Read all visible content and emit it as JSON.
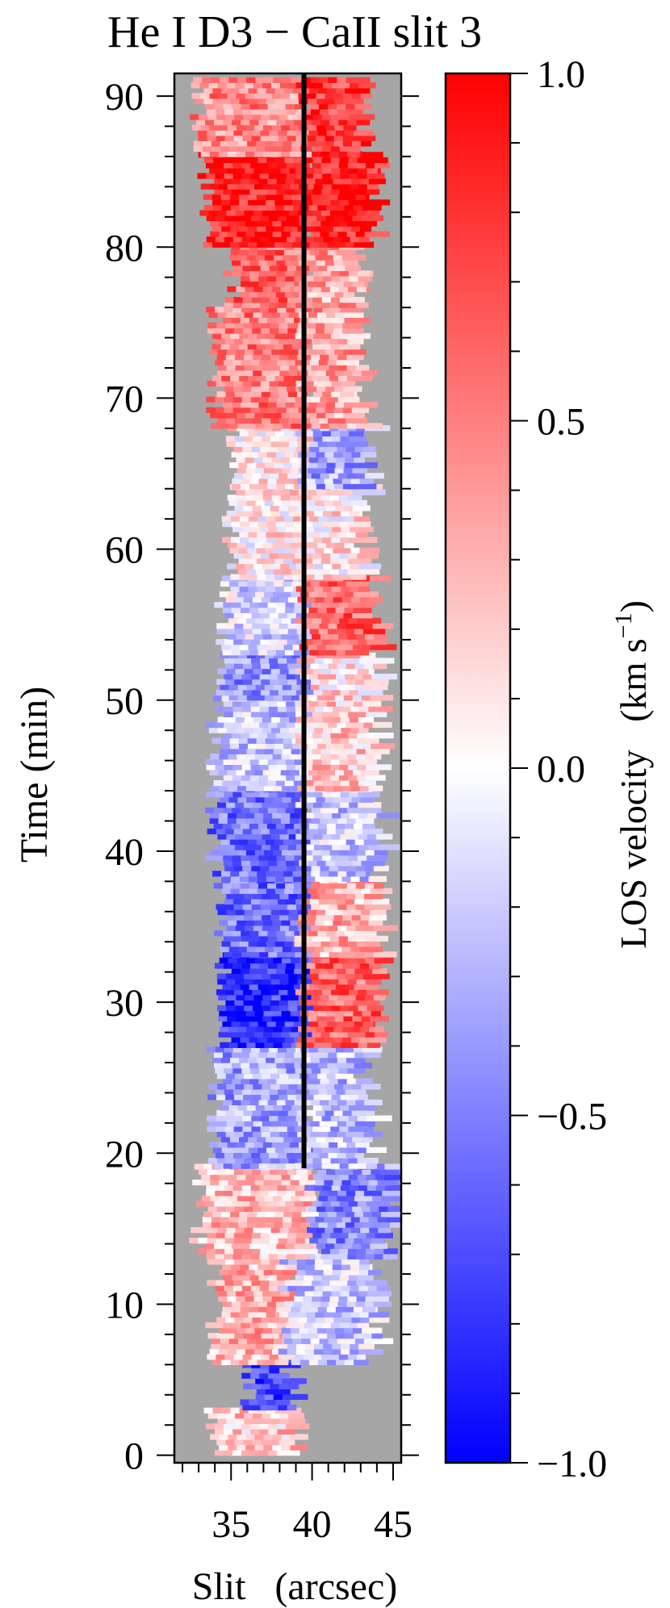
{
  "chart_data": {
    "type": "heatmap",
    "title": "He I D3 − CaII slit 3",
    "xlabel": "Slit   (arcsec)",
    "ylabel": "Time   (min)",
    "colorbar_label": "LOS velocity   (km s",
    "colorbar_label_sup": "−1",
    "colorbar_label_close": ")",
    "xlim": [
      31.5,
      45.5
    ],
    "ylim": [
      -0.5,
      91.5
    ],
    "x_ticks": [
      {
        "value": 35,
        "label": "35"
      },
      {
        "value": 40,
        "label": "40"
      },
      {
        "value": 45,
        "label": "45"
      }
    ],
    "y_ticks": [
      {
        "value": 0,
        "label": "0"
      },
      {
        "value": 10,
        "label": "10"
      },
      {
        "value": 20,
        "label": "20"
      },
      {
        "value": 30,
        "label": "30"
      },
      {
        "value": 40,
        "label": "40"
      },
      {
        "value": 50,
        "label": "50"
      },
      {
        "value": 60,
        "label": "60"
      },
      {
        "value": 70,
        "label": "70"
      },
      {
        "value": 80,
        "label": "80"
      },
      {
        "value": 90,
        "label": "90"
      }
    ],
    "colorbar": {
      "min": -1.0,
      "max": 1.0,
      "colors": {
        "low": "#0000ff",
        "mid": "#ffffff",
        "high": "#ff0000"
      },
      "ticks": [
        {
          "value": 1.0,
          "label": "1.0"
        },
        {
          "value": 0.5,
          "label": "0.5"
        },
        {
          "value": 0.0,
          "label": "0.0"
        },
        {
          "value": -0.5,
          "label": "−0.5"
        },
        {
          "value": -1.0,
          "label": "−1.0"
        }
      ]
    },
    "background_color": "#a6a6a6",
    "reference_line": {
      "x": 39.5,
      "y_start": 19,
      "y_end": 91.5,
      "color": "#000000"
    },
    "regions": [
      {
        "t": [
          0,
          3
        ],
        "x": [
          33.8,
          38.5
        ],
        "v": 0.2
      },
      {
        "t": [
          3,
          8
        ],
        "x": [
          36.0,
          38.2
        ],
        "v": -0.7
      },
      {
        "t": [
          6,
          13
        ],
        "x": [
          34.0,
          38.5
        ],
        "v": 0.3
      },
      {
        "t": [
          6,
          13
        ],
        "x": [
          38.5,
          43.5
        ],
        "v": -0.2
      },
      {
        "t": [
          13,
          19
        ],
        "x": [
          33.0,
          40.0
        ],
        "v": 0.25
      },
      {
        "t": [
          13,
          19
        ],
        "x": [
          40.0,
          44.5
        ],
        "v": -0.45
      },
      {
        "t": [
          19,
          27
        ],
        "x": [
          34.0,
          39.5
        ],
        "v": -0.35
      },
      {
        "t": [
          19,
          27
        ],
        "x": [
          39.5,
          43.0
        ],
        "v": -0.25
      },
      {
        "t": [
          27,
          33
        ],
        "x": [
          34.5,
          39.5
        ],
        "v": -0.8
      },
      {
        "t": [
          27,
          33
        ],
        "x": [
          39.5,
          43.5
        ],
        "v": 0.6
      },
      {
        "t": [
          33,
          38
        ],
        "x": [
          34.5,
          39.5
        ],
        "v": -0.55
      },
      {
        "t": [
          33,
          38
        ],
        "x": [
          39.5,
          43.5
        ],
        "v": 0.3
      },
      {
        "t": [
          38,
          44
        ],
        "x": [
          34.0,
          39.5
        ],
        "v": -0.55
      },
      {
        "t": [
          38,
          44
        ],
        "x": [
          39.5,
          43.5
        ],
        "v": -0.2
      },
      {
        "t": [
          44,
          50
        ],
        "x": [
          34.0,
          39.5
        ],
        "v": -0.2
      },
      {
        "t": [
          44,
          50
        ],
        "x": [
          39.5,
          43.5
        ],
        "v": 0.2
      },
      {
        "t": [
          50,
          53
        ],
        "x": [
          34.5,
          39.5
        ],
        "v": -0.45
      },
      {
        "t": [
          50,
          53
        ],
        "x": [
          39.5,
          43.5
        ],
        "v": 0.15
      },
      {
        "t": [
          53,
          58
        ],
        "x": [
          34.5,
          39.5
        ],
        "v": -0.15
      },
      {
        "t": [
          53,
          58
        ],
        "x": [
          39.5,
          43.5
        ],
        "v": 0.6
      },
      {
        "t": [
          58,
          64
        ],
        "x": [
          35.0,
          39.5
        ],
        "v": 0.1
      },
      {
        "t": [
          58,
          64
        ],
        "x": [
          39.5,
          43.0
        ],
        "v": 0.1
      },
      {
        "t": [
          64,
          68
        ],
        "x": [
          35.0,
          39.5
        ],
        "v": 0.1
      },
      {
        "t": [
          64,
          68
        ],
        "x": [
          39.5,
          43.0
        ],
        "v": -0.35
      },
      {
        "t": [
          68,
          76
        ],
        "x": [
          34.0,
          39.5
        ],
        "v": 0.5
      },
      {
        "t": [
          68,
          76
        ],
        "x": [
          39.5,
          42.5
        ],
        "v": 0.35
      },
      {
        "t": [
          76,
          80
        ],
        "x": [
          35.0,
          39.5
        ],
        "v": 0.6
      },
      {
        "t": [
          76,
          80
        ],
        "x": [
          39.5,
          42.5
        ],
        "v": 0.35
      },
      {
        "t": [
          80,
          86
        ],
        "x": [
          33.5,
          39.5
        ],
        "v": 0.9
      },
      {
        "t": [
          80,
          86
        ],
        "x": [
          39.5,
          43.5
        ],
        "v": 0.9
      },
      {
        "t": [
          86,
          91
        ],
        "x": [
          33.0,
          39.5
        ],
        "v": 0.45
      },
      {
        "t": [
          86,
          91
        ],
        "x": [
          39.5,
          42.5
        ],
        "v": 0.8
      }
    ]
  }
}
